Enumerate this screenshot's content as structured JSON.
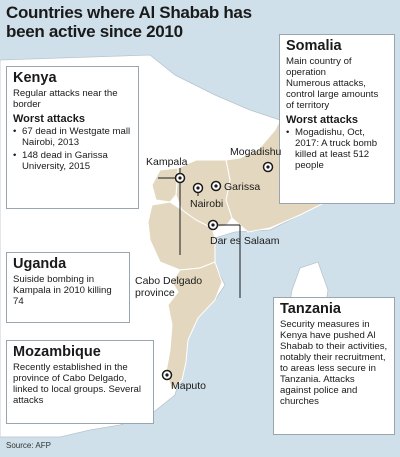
{
  "title": "Countries where Al Shabab has been active since 2010",
  "colors": {
    "sea": "#cfe0ea",
    "land": "#ffffff",
    "highlight": "#e3d8bf",
    "border": "#9aa6ad"
  },
  "boxes": {
    "kenya": {
      "heading": "Kenya",
      "text": "Regular attacks near the border",
      "worst_heading": "Worst attacks",
      "items": [
        "67 dead in Westgate mall Nairobi, 2013",
        "148 dead in Garissa University, 2015"
      ]
    },
    "somalia": {
      "heading": "Somalia",
      "text1": "Main country of operation",
      "text2": "Numerous attacks, control large amounts of territory",
      "worst_heading": "Worst attacks",
      "items": [
        "Mogadishu, Oct, 2017: A truck bomb killed at least 512 people"
      ]
    },
    "uganda": {
      "heading": "Uganda",
      "text": "Suiside bombing in Kampala in 2010 killing 74"
    },
    "mozambique": {
      "heading": "Mozambique",
      "text": "Recently established in the province of Cabo Delgado, linked to local groups. Several attacks"
    },
    "tanzania": {
      "heading": "Tanzania",
      "text": "Security measures in Kenya have pushed Al Shabab to their activities, notably their recruitment, to areas less secure in Tanzania. Attacks against police and churches"
    }
  },
  "cities": {
    "mogadishu": "Mogadishu",
    "kampala": "Kampala",
    "garissa": "Garissa",
    "nairobi": "Nairobi",
    "dar_es_salaam": "Dar es Salaam",
    "cabo_delgado": "Cabo Delgado province",
    "maputo": "Maputo"
  },
  "source": "Source: AFP"
}
